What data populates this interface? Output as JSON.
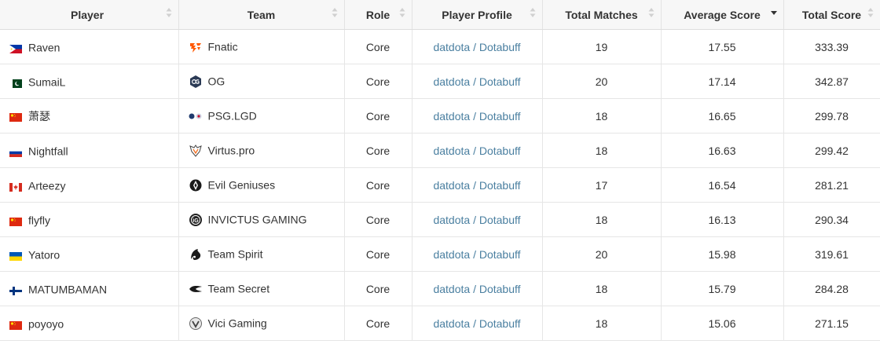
{
  "columns": [
    {
      "label": "Player",
      "sort": "none"
    },
    {
      "label": "Team",
      "sort": "none"
    },
    {
      "label": "Role",
      "sort": "none"
    },
    {
      "label": "Player Profile",
      "sort": "none"
    },
    {
      "label": "Total Matches",
      "sort": "none"
    },
    {
      "label": "Average Score",
      "sort": "desc"
    },
    {
      "label": "Total Score",
      "sort": "none"
    }
  ],
  "profile_link": {
    "a": "datdota",
    "sep": " / ",
    "b": "Dotabuff"
  },
  "rows": [
    {
      "player": "Raven",
      "flag": "philippines-flag",
      "team": "Fnatic",
      "team_icon": "fnatic-logo-icon",
      "role": "Core",
      "matches": "19",
      "avg": "17.55",
      "total": "333.39"
    },
    {
      "player": "SumaiL",
      "flag": "pakistan-flag",
      "team": "OG",
      "team_icon": "og-logo-icon",
      "role": "Core",
      "matches": "20",
      "avg": "17.14",
      "total": "342.87"
    },
    {
      "player": "萧瑟",
      "flag": "china-flag",
      "team": "PSG.LGD",
      "team_icon": "psg-lgd-logo-icon",
      "role": "Core",
      "matches": "18",
      "avg": "16.65",
      "total": "299.78"
    },
    {
      "player": "Nightfall",
      "flag": "russia-flag",
      "team": "Virtus.pro",
      "team_icon": "virtus-pro-logo-icon",
      "role": "Core",
      "matches": "18",
      "avg": "16.63",
      "total": "299.42"
    },
    {
      "player": "Arteezy",
      "flag": "canada-flag",
      "team": "Evil Geniuses",
      "team_icon": "evil-geniuses-logo-icon",
      "role": "Core",
      "matches": "17",
      "avg": "16.54",
      "total": "281.21"
    },
    {
      "player": "flyfly",
      "flag": "china-flag",
      "team": "INVICTUS GAMING",
      "team_icon": "invictus-gaming-logo-icon",
      "role": "Core",
      "matches": "18",
      "avg": "16.13",
      "total": "290.34"
    },
    {
      "player": "Yatoro",
      "flag": "ukraine-flag",
      "team": "Team Spirit",
      "team_icon": "team-spirit-logo-icon",
      "role": "Core",
      "matches": "20",
      "avg": "15.98",
      "total": "319.61"
    },
    {
      "player": "MATUMBAMAN",
      "flag": "finland-flag",
      "team": "Team Secret",
      "team_icon": "team-secret-logo-icon",
      "role": "Core",
      "matches": "18",
      "avg": "15.79",
      "total": "284.28"
    },
    {
      "player": "poyoyo",
      "flag": "china-flag",
      "team": "Vici Gaming",
      "team_icon": "vici-gaming-logo-icon",
      "role": "Core",
      "matches": "18",
      "avg": "15.06",
      "total": "271.15"
    }
  ]
}
